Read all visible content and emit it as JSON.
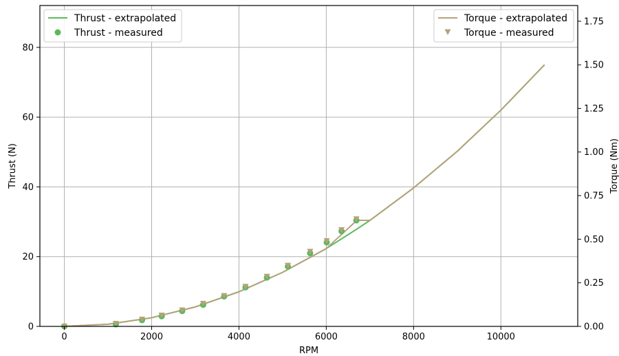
{
  "chart_data": {
    "type": "line",
    "xlabel": "RPM",
    "ylabel_left": "Thrust (N)",
    "ylabel_right": "Torque (Nm)",
    "xlim": [
      -560,
      11760
    ],
    "ylim_left": [
      0,
      92
    ],
    "ylim_right": [
      0,
      1.84
    ],
    "grid": true,
    "x_ticks": [
      0,
      2000,
      4000,
      6000,
      8000,
      10000
    ],
    "y_left_ticks": [
      0,
      20,
      40,
      60,
      80
    ],
    "y_right_ticks": [
      0.0,
      0.25,
      0.5,
      0.75,
      1.0,
      1.25,
      1.5,
      1.75
    ],
    "x_tick_labels": [
      "0",
      "2000",
      "4000",
      "6000",
      "8000",
      "10000"
    ],
    "y_left_tick_labels": [
      "0",
      "20",
      "40",
      "60",
      "80"
    ],
    "y_right_tick_labels": [
      "0.00",
      "0.25",
      "0.50",
      "0.75",
      "1.00",
      "1.25",
      "1.50",
      "1.75"
    ],
    "legend_left_placement": "top-left",
    "legend_right_placement": "top-right",
    "series": [
      {
        "name": "Thrust - extrapolated",
        "kind": "line",
        "axis": "left",
        "color": "#5cb85c",
        "x": [
          0,
          1000,
          2000,
          3000,
          4000,
          5000,
          6000,
          6700,
          7000,
          8000,
          9000,
          10000,
          11000
        ],
        "y": [
          0,
          0.62,
          2.48,
          5.58,
          9.92,
          15.5,
          22.32,
          27.9,
          30.4,
          39.7,
          50.2,
          62.0,
          75.0
        ]
      },
      {
        "name": "Thrust - measured",
        "kind": "points",
        "axis": "left",
        "color": "#5cb85c",
        "marker": "circle",
        "x": [
          0,
          1180,
          1780,
          2230,
          2700,
          3180,
          3660,
          4150,
          4640,
          5120,
          5630,
          6010,
          6350,
          6690
        ],
        "y": [
          0,
          0.6,
          1.8,
          2.9,
          4.4,
          6.2,
          8.6,
          11.2,
          14.0,
          17.2,
          21.0,
          24.1,
          27.3,
          30.4
        ]
      },
      {
        "name": "Torque - extrapolated",
        "kind": "line",
        "axis": "right",
        "color": "#b5a27a",
        "x": [
          0,
          1000,
          2000,
          3000,
          4000,
          5000,
          6000,
          6700,
          7000,
          8000,
          9000,
          10000,
          11000
        ],
        "y": [
          0,
          0.0124,
          0.0496,
          0.1116,
          0.1984,
          0.31,
          0.4464,
          0.608,
          0.608,
          0.794,
          1.004,
          1.24,
          1.5
        ]
      },
      {
        "name": "Torque - measured",
        "kind": "points",
        "axis": "right",
        "color": "#b5a27a",
        "marker": "triangle-down",
        "x": [
          0,
          1180,
          1780,
          2230,
          2700,
          3180,
          3660,
          4150,
          4640,
          5120,
          5630,
          6010,
          6350,
          6690
        ],
        "y": [
          0,
          0.016,
          0.04,
          0.063,
          0.093,
          0.131,
          0.175,
          0.228,
          0.286,
          0.349,
          0.429,
          0.49,
          0.553,
          0.615
        ]
      }
    ]
  }
}
